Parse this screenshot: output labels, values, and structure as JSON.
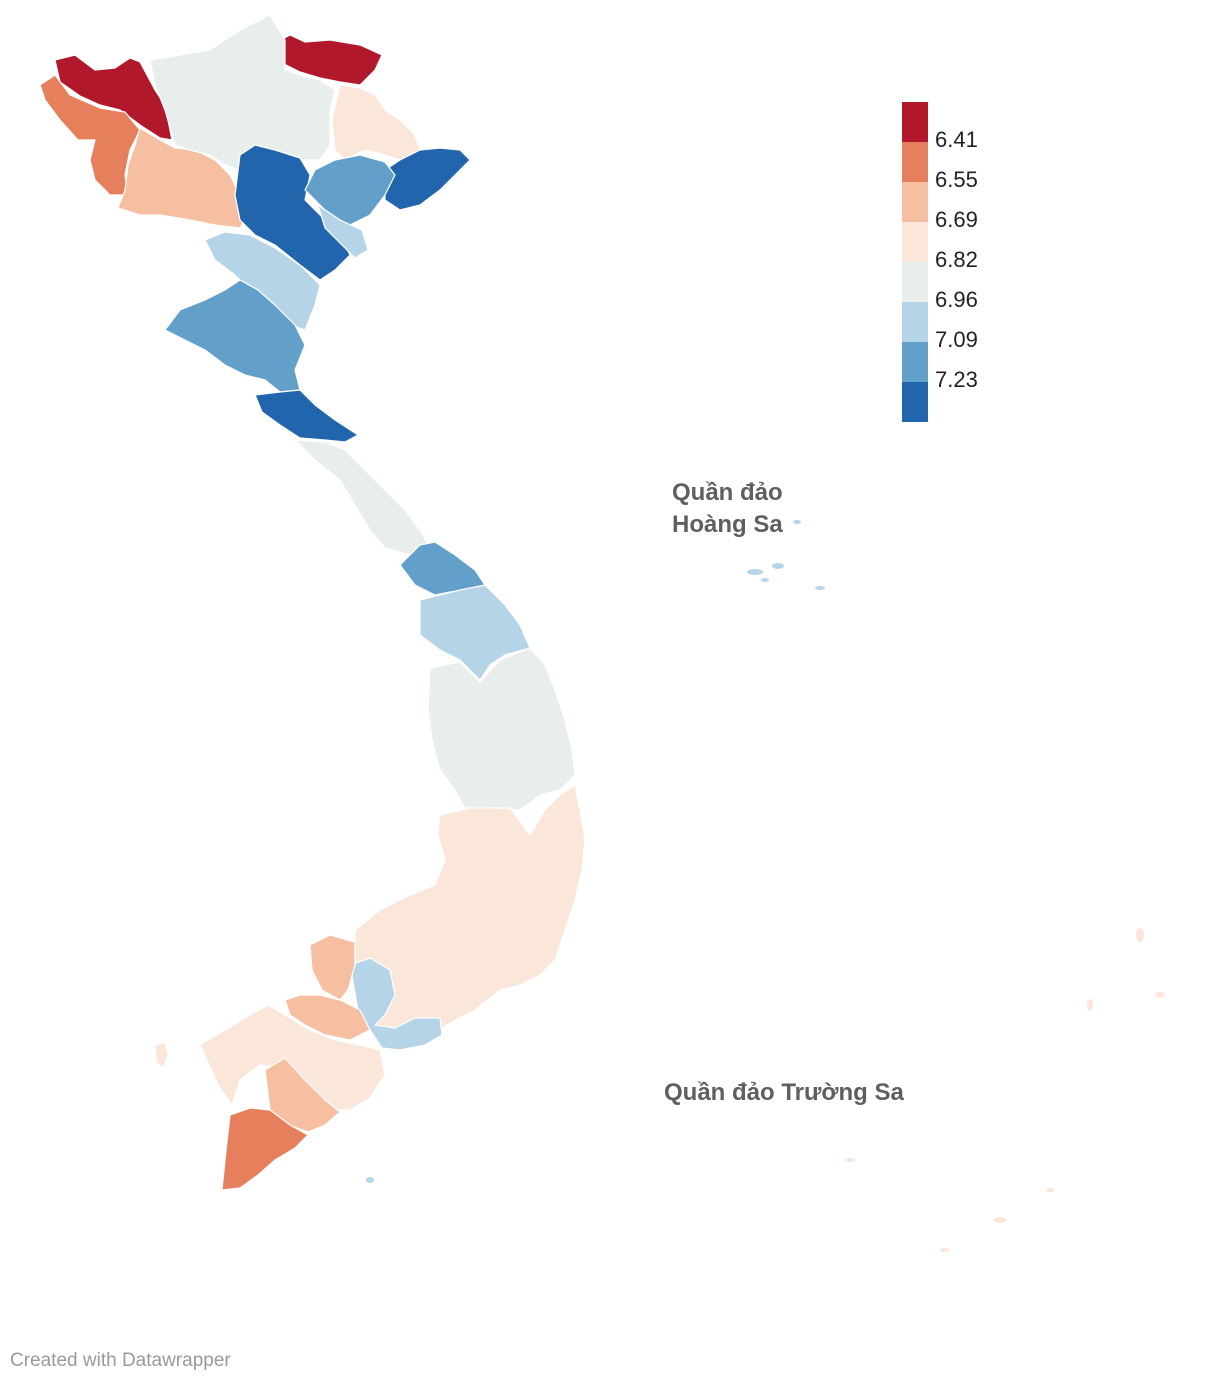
{
  "map": {
    "type": "choropleth",
    "legend": {
      "colors": [
        "#b2182b",
        "#e6805c",
        "#f7bfa1",
        "#fbe6da",
        "#e8eeec",
        "#b5d4e8",
        "#62a0ca",
        "#2166ac"
      ],
      "labels": [
        "6.41",
        "6.55",
        "6.69",
        "6.82",
        "6.96",
        "7.09",
        "7.23"
      ]
    },
    "annotations": {
      "hoang_sa_line1": "Quần đảo",
      "hoang_sa_line2": "Hoàng Sa",
      "truong_sa": "Quần đảo Trường Sa"
    }
  },
  "footer": {
    "credit": "Created with Datawrapper"
  }
}
